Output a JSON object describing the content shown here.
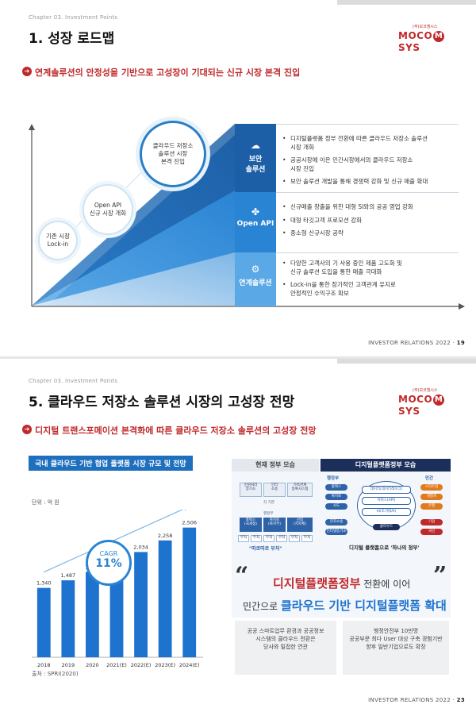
{
  "slide1": {
    "chapter": "Chapter 03. Investment Points",
    "title": "1. 성장 로드맵",
    "logo_small": "(주)모코엠시스",
    "logo_word_left": "MOCO",
    "logo_m": "M",
    "logo_word_right": "SYS",
    "subtitle": "연계솔루션의 안정성을 기반으로 고성장이 기대되는 신규 시장 본격 진입",
    "bubbles": [
      {
        "text": "기존 시장\nLock-in"
      },
      {
        "text": "Open API\n신규 시장 개화"
      },
      {
        "text": "클라우드 저장소\n솔루션 시장\n본격 진입"
      }
    ],
    "bands": [
      {
        "label": "보안\n솔루션",
        "icon": "cloud-stack-icon",
        "color": "#1d5fa6"
      },
      {
        "label": "Open API",
        "icon": "api-icon",
        "color": "#2a84d4"
      },
      {
        "label": "연계솔루션",
        "icon": "gear-icon",
        "color": "#5aa8e6"
      }
    ],
    "bullets": [
      [
        "디지털플랫폼 정부 전환에 따른 클라우드 저장소 솔루션\n시장 개화",
        "공공시장에 이은 민간시장에서의  클라우드 저장소\n시장 진입",
        "보안 솔루션 개발을 통해 경쟁력 강화 및 신규 매출 확대"
      ],
      [
        "신규매출 창출을 위한 대형 SI와의 공공 영업 강화",
        "대형 타깃고객 프로모션 강화",
        "중소형 신규시장 공략"
      ],
      [
        "다양한 고객사의 기 사용 중인 제품 고도화 및\n신규 솔루션 도입을 통한 매출 극대화",
        "Lock-in을 통한 장기적인 고객관계 유지로\n안정적인 수익구조 확보"
      ]
    ],
    "footer": "INVESTOR RELATIONS 2022",
    "page": "19"
  },
  "slide2": {
    "chapter": "Chapter 03. Investment Points",
    "title": "5. 클라우드 저장소 솔루션 시장의 고성장 전망",
    "logo_small": "(주)모코엠시스",
    "logo_word_left": "MOCO",
    "logo_m": "M",
    "logo_word_right": "SYS",
    "subtitle": "디지털 트랜스포메이션 본격화에 따른 클라우드 저장소 솔루션의 고성장 전망",
    "chart_title": "국내 클라우드 기반 협업 플랫폼 시장 규모 및 전망",
    "unit": "단위 : 억 원",
    "cagr_label": "CAGR",
    "cagr_value": "11%",
    "source": "출처 : SPRI(2020)",
    "diagram": {
      "left_header": "현재 정부 모습",
      "right_header": "디지털플랫폼정부 모습",
      "left_top": [
        "민원처리\n장기소",
        "인터\n소송",
        "가족관계\n등록시스템"
      ],
      "left_mid_label": "각 기관",
      "left_mid2_label": "행정부",
      "left_bottom": [
        "홈택스\n(국세청)",
        "복지로\n(복지부)",
        "산림\n(지자체)"
      ],
      "left_tags": [
        "부처",
        "부처",
        "부처",
        "부처",
        "부처",
        "부처"
      ],
      "left_caption": "\"따로따로 부처\"",
      "right_label_left": "행정부",
      "right_label_right": "민간",
      "right_left_items": [
        "홈택스",
        "복지로",
        "사도"
      ],
      "right_center_items": [
        "데이터(데이터레이크)",
        "서비스(API)",
        "AI(초거대AI)"
      ],
      "right_right_items": [
        "스타트업",
        "개발자",
        "은행"
      ],
      "right_bottom_left": [
        "전자소송",
        "인터넷등기소"
      ],
      "right_bottom_center": "클라우드",
      "right_bottom_right": [
        "기업",
        "국민"
      ],
      "right_caption": "디지털 플랫폼으로 '하나의 정부'"
    },
    "quote_open": "“",
    "quote_close": "”",
    "headline1_accent": "디지털플랫폼정부",
    "headline1_rest": " 전환에 이어",
    "headline2_pre": "민간으로 ",
    "headline2_accent": "클라우드 기반 디지털플랫폼 확대",
    "panel_left": "공공 스마트업무 환경과 공공정보\n시스템의 클라우드 전환은\n당사와 밀접한 연관",
    "panel_right": "행정안전부 10만명\n공공부문 최다 User 대상 구축 경험기반\n향후 일반기업으로도 확장",
    "footer": "INVESTOR RELATIONS 2022",
    "page": "23"
  },
  "chart_data": {
    "type": "bar",
    "title": "국내 클라우드 기반 협업 플랫폼 시장 규모 및 전망",
    "categories": [
      "2018",
      "2019",
      "2020",
      "2021(E)",
      "2022(E)",
      "2023(E)",
      "2024(E)"
    ],
    "values": [
      1340,
      1487,
      1651,
      1833,
      2034,
      2258,
      2506
    ],
    "value_labels": [
      "1,340",
      "1,487",
      "1,651",
      "1,833",
      "2,034",
      "2,258",
      "2,506"
    ],
    "ylabel": "단위 : 억 원",
    "ylim": [
      0,
      2700
    ],
    "grid": false,
    "color": "#1e73cf"
  }
}
